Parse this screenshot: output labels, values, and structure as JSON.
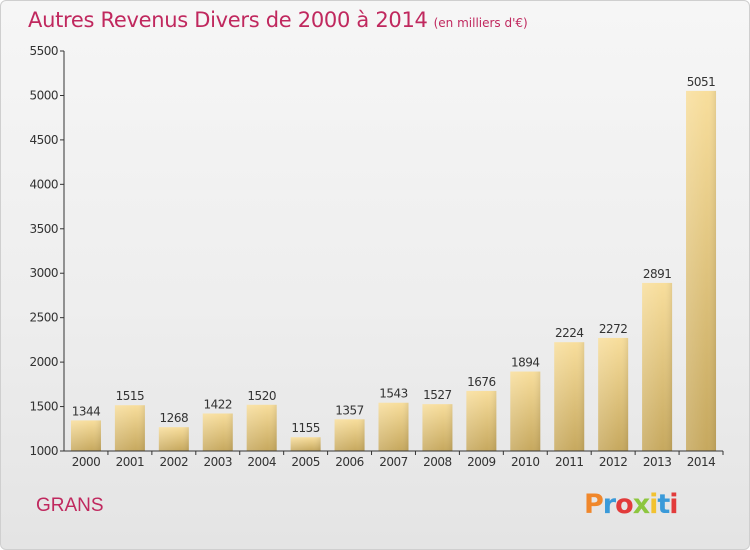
{
  "header": {
    "title": "Autres Revenus Divers de 2000 à 2014",
    "unit": "(en milliers d'€)"
  },
  "footer": {
    "commune": "GRANS",
    "brand": "Proxiti",
    "brand_colors": [
      "#f0872b",
      "#3a9ad9",
      "#e23b3b",
      "#8dc63f",
      "#f2c230",
      "#3a9ad9",
      "#e23b3b"
    ]
  },
  "colors": {
    "title": "#c0285e",
    "bar_light": "#f7dc9a",
    "bar_dark": "#c8a95f",
    "axis": "#333333"
  },
  "chart_data": {
    "type": "bar",
    "title": "Autres Revenus Divers de 2000 à 2014",
    "subtitle": "(en milliers d'€)",
    "categories": [
      "2000",
      "2001",
      "2002",
      "2003",
      "2004",
      "2005",
      "2006",
      "2007",
      "2008",
      "2009",
      "2010",
      "2011",
      "2012",
      "2013",
      "2014"
    ],
    "values": [
      1344,
      1515,
      1268,
      1422,
      1520,
      1155,
      1357,
      1543,
      1527,
      1676,
      1894,
      2224,
      2272,
      2891,
      5051
    ],
    "ylim": [
      1000,
      5500
    ],
    "yticks": [
      1000,
      1500,
      2000,
      2500,
      3000,
      3500,
      4000,
      4500,
      5000,
      5500
    ],
    "grid": false,
    "data_labels": true
  }
}
